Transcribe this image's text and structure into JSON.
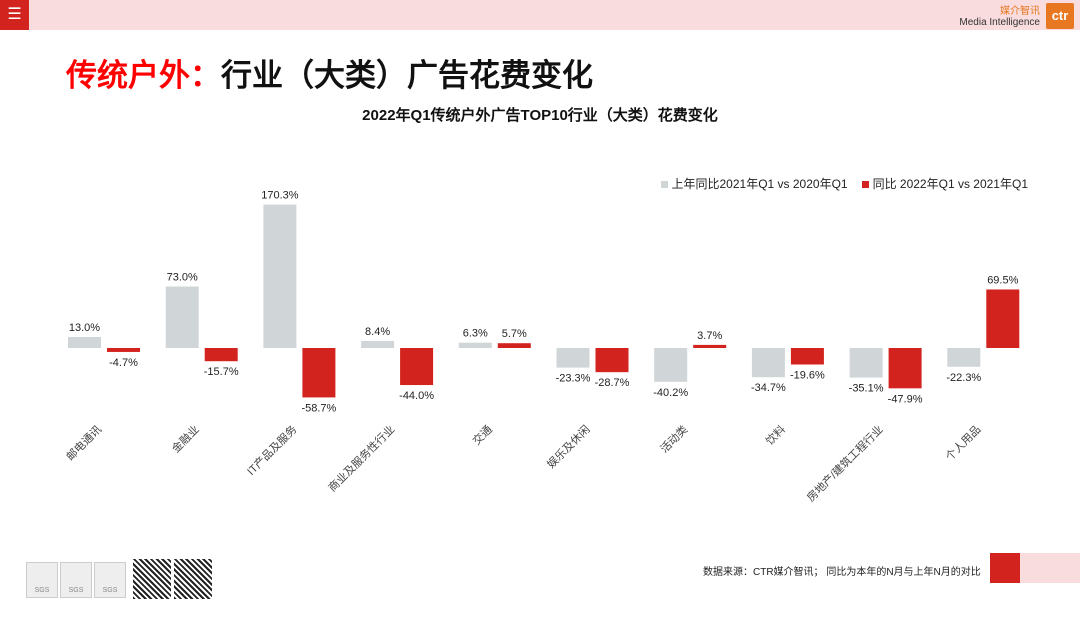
{
  "header": {
    "menu_icon": "☰",
    "brand_cn": "媒介智讯",
    "brand_en": "Media Intelligence",
    "logo": "ctr"
  },
  "title": {
    "red": "传统户外：",
    "black": "行业（大类）广告花费变化"
  },
  "chart_data": {
    "type": "bar",
    "title": "2022年Q1传统户外广告TOP10行业（大类）花费变化",
    "categories": [
      "邮电通讯",
      "金融业",
      "IT产品及服务",
      "商业及服务性行业",
      "交通",
      "娱乐及休闲",
      "活动类",
      "饮料",
      "房地产/建筑工程行业",
      "个人用品"
    ],
    "series": [
      {
        "name": "上年同比2021年Q1 vs 2020年Q1",
        "color": "#d0d5d8",
        "values": [
          13.0,
          73.0,
          170.3,
          8.4,
          6.3,
          -23.3,
          -40.2,
          -34.7,
          -35.1,
          -22.3
        ]
      },
      {
        "name": "同比 2022年Q1 vs 2021年Q1",
        "color": "#d3231e",
        "values": [
          -4.7,
          -15.7,
          -58.7,
          -44.0,
          5.7,
          -28.7,
          3.7,
          -19.6,
          -47.9,
          69.5
        ]
      }
    ],
    "legend_position": "top-right",
    "grid": false
  },
  "footer": {
    "source": "数据来源：CTR媒介智讯； 同比为本年的N月与上年N月的对比",
    "sgs": "SGS"
  }
}
